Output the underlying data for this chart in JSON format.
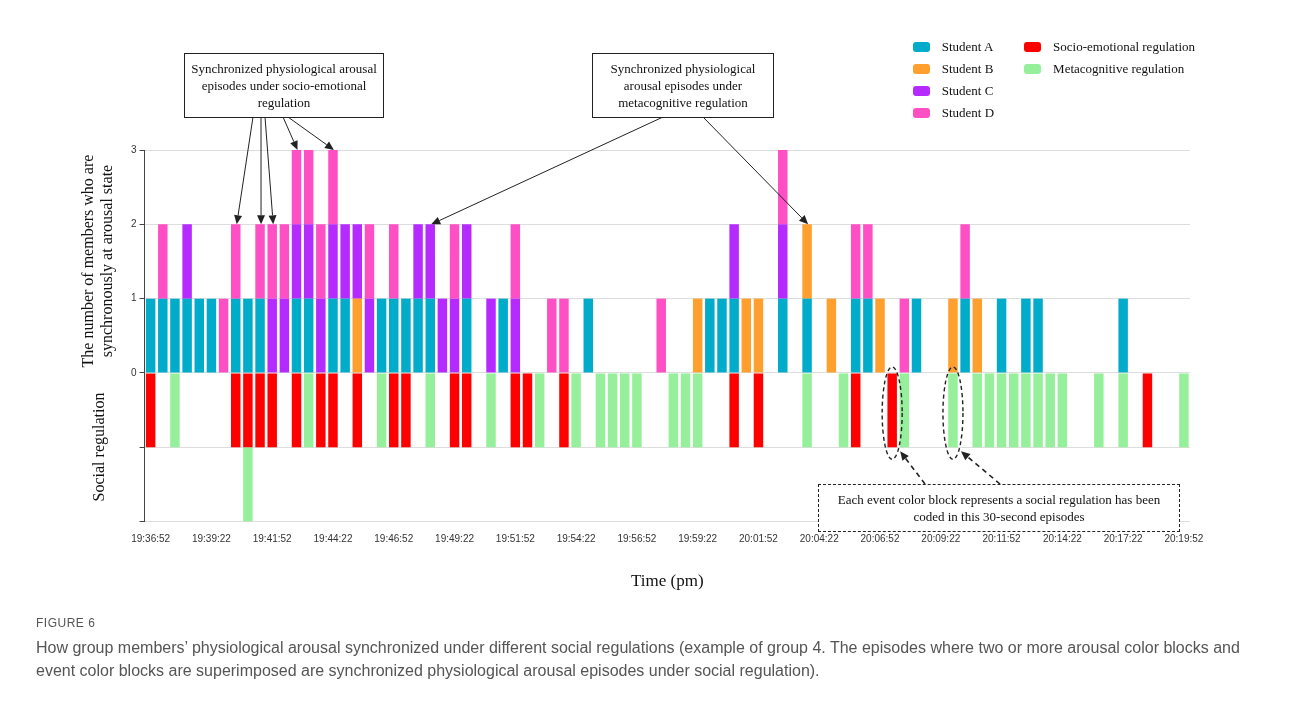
{
  "chart_data": {
    "type": "bar",
    "title": "FIGURE 6",
    "subtitle": "How group members’ physiological arousal synchronized under different social regulations (example of group 4. The episodes where two or more arousal color blocks and event color blocks are superimposed are synchronized physiological arousal episodes under social regulation).",
    "xlabel": "Time (pm)",
    "ylabel": "The number of members who are synchronously at arousal state",
    "annotations": [
      "Synchronized physiological arousal episodes under socio-emotional regulation",
      "Synchronized physiological arousal episodes under metacognitive regulation",
      "Each event color block represents a social regulation has been coded in this 30-second episodes",
      "Social regulation"
    ],
    "categories": [
      "19:36:52",
      null,
      null,
      null,
      null,
      "19:39:22",
      null,
      null,
      null,
      null,
      "19:41:52",
      null,
      null,
      null,
      null,
      "19:44:22",
      null,
      null,
      null,
      null,
      "19:46:52",
      null,
      null,
      null,
      null,
      "19:49:22",
      null,
      null,
      null,
      null,
      "19:51:52",
      null,
      null,
      null,
      null,
      "19:54:22",
      null,
      null,
      null,
      null,
      "19:56:52",
      null,
      null,
      null,
      null,
      "19:59:22",
      null,
      null,
      null,
      null,
      "20:01:52",
      null,
      null,
      null,
      null,
      "20:04:22",
      null,
      null,
      null,
      null,
      "20:06:52",
      null,
      null,
      null,
      null,
      "20:09:22",
      null,
      null,
      null,
      null,
      "20:11:52",
      null,
      null,
      null,
      null,
      "20:14:22",
      null,
      null,
      null,
      null,
      "20:17:22",
      null,
      null,
      null,
      null,
      "20:19:52"
    ],
    "stacked": true,
    "series": [
      {
        "name": "Student A",
        "color": "#00acc9",
        "values": [
          1,
          1,
          1,
          1,
          1,
          1,
          null,
          1,
          1,
          1,
          null,
          null,
          1,
          1,
          null,
          1,
          1,
          null,
          null,
          1,
          1,
          1,
          1,
          1,
          null,
          null,
          1,
          null,
          null,
          1,
          null,
          null,
          null,
          null,
          null,
          null,
          1,
          null,
          null,
          null,
          null,
          null,
          null,
          null,
          null,
          null,
          1,
          1,
          1,
          null,
          null,
          null,
          1,
          null,
          1,
          null,
          null,
          null,
          1,
          1,
          null,
          null,
          null,
          1,
          null,
          null,
          null,
          1,
          null,
          null,
          1,
          null,
          1,
          1,
          null,
          null,
          null,
          null,
          null,
          null,
          1,
          null,
          null,
          null,
          null,
          null
        ]
      },
      {
        "name": "Student B",
        "color": "#ff9f2e",
        "values": [
          null,
          null,
          null,
          null,
          null,
          null,
          null,
          null,
          null,
          null,
          null,
          null,
          null,
          null,
          null,
          null,
          null,
          1,
          null,
          null,
          null,
          null,
          null,
          null,
          null,
          null,
          null,
          null,
          null,
          null,
          null,
          null,
          null,
          null,
          null,
          null,
          null,
          null,
          null,
          null,
          null,
          null,
          null,
          null,
          null,
          1,
          null,
          null,
          null,
          1,
          1,
          null,
          null,
          null,
          1,
          null,
          1,
          null,
          null,
          null,
          1,
          null,
          null,
          null,
          null,
          null,
          1,
          null,
          1,
          null,
          null,
          null,
          null,
          null,
          null,
          null,
          null,
          null,
          null,
          null,
          null,
          null,
          null,
          null,
          null,
          null
        ]
      },
      {
        "name": "Student C",
        "color": "#b52bff",
        "values": [
          null,
          null,
          null,
          1,
          null,
          null,
          null,
          null,
          null,
          null,
          1,
          1,
          1,
          1,
          1,
          1,
          1,
          1,
          1,
          null,
          null,
          null,
          1,
          1,
          1,
          1,
          1,
          null,
          1,
          null,
          1,
          null,
          null,
          null,
          null,
          null,
          null,
          null,
          null,
          null,
          null,
          null,
          null,
          null,
          null,
          null,
          null,
          null,
          1,
          null,
          null,
          null,
          1,
          null,
          null,
          null,
          null,
          null,
          null,
          null,
          null,
          null,
          null,
          null,
          null,
          null,
          null,
          null,
          null,
          null,
          null,
          null,
          null,
          null,
          null,
          null,
          null,
          null,
          null,
          null,
          null,
          null,
          null,
          null,
          null,
          null
        ]
      },
      {
        "name": "Student D",
        "color": "#ff4fc4",
        "values": [
          null,
          1,
          null,
          null,
          null,
          null,
          1,
          1,
          null,
          1,
          1,
          1,
          1,
          1,
          1,
          1,
          null,
          null,
          1,
          null,
          1,
          null,
          null,
          null,
          null,
          1,
          null,
          null,
          null,
          null,
          1,
          null,
          null,
          1,
          1,
          null,
          null,
          null,
          null,
          null,
          null,
          null,
          1,
          null,
          null,
          null,
          null,
          null,
          null,
          null,
          null,
          null,
          1,
          null,
          null,
          null,
          null,
          null,
          1,
          1,
          null,
          null,
          1,
          null,
          null,
          null,
          null,
          1,
          null,
          null,
          null,
          null,
          null,
          null,
          null,
          null,
          null,
          null,
          null,
          null,
          null,
          null,
          null,
          null,
          null,
          null
        ]
      },
      {
        "name": "Socio-emotional regulation",
        "color": "#ff0000",
        "values": [
          -1,
          null,
          null,
          null,
          null,
          null,
          null,
          -1,
          -1,
          -1,
          -1,
          null,
          -1,
          null,
          -1,
          -1,
          null,
          -1,
          null,
          null,
          -1,
          -1,
          null,
          null,
          null,
          -1,
          -1,
          null,
          null,
          null,
          -1,
          -1,
          null,
          null,
          -1,
          null,
          null,
          null,
          null,
          null,
          null,
          null,
          null,
          null,
          null,
          null,
          null,
          null,
          -1,
          null,
          -1,
          null,
          null,
          null,
          null,
          null,
          null,
          null,
          -1,
          null,
          null,
          -1,
          null,
          null,
          null,
          null,
          null,
          null,
          null,
          null,
          null,
          null,
          null,
          null,
          null,
          null,
          null,
          null,
          null,
          null,
          null,
          null,
          -1,
          null,
          null,
          null
        ]
      },
      {
        "name": "Metacognitive regulation",
        "color": "#96f09b",
        "values": [
          null,
          null,
          -1,
          null,
          null,
          null,
          null,
          null,
          -1,
          null,
          null,
          null,
          null,
          -1,
          null,
          null,
          null,
          null,
          null,
          -1,
          null,
          null,
          null,
          -1,
          null,
          null,
          null,
          null,
          -1,
          null,
          null,
          null,
          -1,
          null,
          null,
          -1,
          null,
          -1,
          -1,
          -1,
          -1,
          null,
          null,
          -1,
          -1,
          -1,
          null,
          null,
          null,
          null,
          null,
          null,
          null,
          null,
          -1,
          null,
          null,
          -1,
          null,
          null,
          null,
          null,
          -1,
          null,
          null,
          null,
          -1,
          null,
          -1,
          -1,
          -1,
          -1,
          -1,
          -1,
          -1,
          -1,
          null,
          null,
          -1,
          null,
          -1,
          null,
          null,
          null,
          null,
          -1
        ]
      }
    ],
    "ylim": [
      -2,
      3
    ],
    "yticks": [
      {
        "value": -2,
        "label": null
      },
      {
        "value": -1,
        "label": null
      },
      0,
      1,
      2,
      3
    ],
    "grid": "y",
    "legend": "top right"
  }
}
